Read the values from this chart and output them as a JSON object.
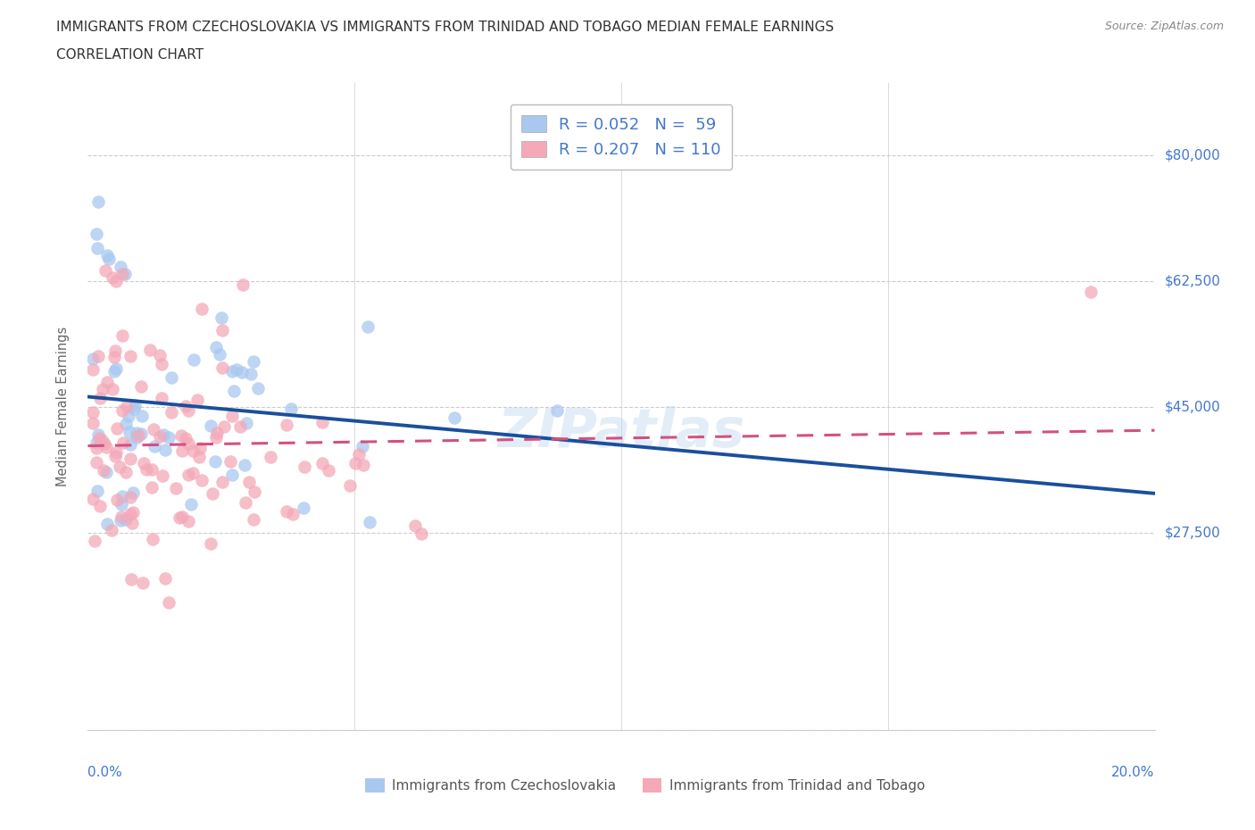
{
  "title_line1": "IMMIGRANTS FROM CZECHOSLOVAKIA VS IMMIGRANTS FROM TRINIDAD AND TOBAGO MEDIAN FEMALE EARNINGS",
  "title_line2": "CORRELATION CHART",
  "source_text": "Source: ZipAtlas.com",
  "ylabel": "Median Female Earnings",
  "xlim": [
    0.0,
    0.2
  ],
  "ylim": [
    0,
    90000
  ],
  "ytick_vals": [
    27500,
    45000,
    62500,
    80000
  ],
  "ytick_labels": [
    "$27,500",
    "$45,000",
    "$62,500",
    "$80,000"
  ],
  "color_czech": "#a8c8f0",
  "color_trinidad": "#f4a8b8",
  "line_color_czech": "#1a4f9c",
  "line_color_trinidad": "#d45080",
  "R_czech": 0.052,
  "N_czech": 59,
  "R_trinidad": 0.207,
  "N_trinidad": 110,
  "legend_label_czech": "Immigrants from Czechoslovakia",
  "legend_label_trinidad": "Immigrants from Trinidad and Tobago",
  "watermark": "ZIPatlas",
  "background_color": "#ffffff",
  "grid_color": "#cccccc",
  "label_color": "#4477cc",
  "title_color": "#333333",
  "source_color": "#888888"
}
